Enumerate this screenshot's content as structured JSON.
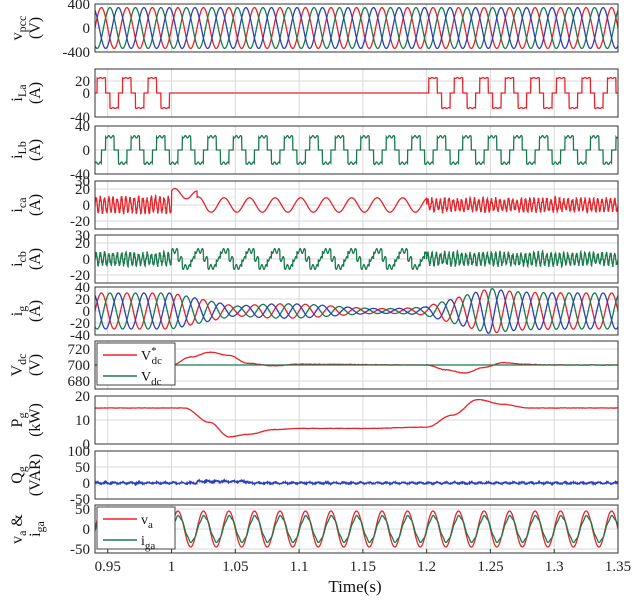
{
  "figure": {
    "xlabel": "Time(s)",
    "x_ticks": [
      "0.95",
      "1",
      "1.05",
      "1.1",
      "1.15",
      "1.2",
      "1.25",
      "1.3",
      "1.35"
    ]
  },
  "colors": {
    "red": "#e8232a",
    "green": "#1a7a4e",
    "blue": "#2b3fb8",
    "grid": "#d9d9d9"
  },
  "chart_data": [
    {
      "type": "line",
      "ylabel_main": "v",
      "ylabel_sub": "pcc",
      "ylabel_unit": "(V)",
      "ylim": [
        -400,
        400
      ],
      "yticks": [
        "400",
        "0",
        "-400"
      ],
      "description_free_values": {
        "amplitude": 340,
        "frequency_hz": 50
      },
      "series": [
        {
          "color": "red",
          "amplitude": 340,
          "phase_deg": 0
        },
        {
          "color": "green",
          "amplitude": 340,
          "phase_deg": -120
        },
        {
          "color": "blue",
          "amplitude": 340,
          "phase_deg": 120
        }
      ]
    },
    {
      "type": "line",
      "ylabel_main": "i",
      "ylabel_sub": "La",
      "ylabel_unit": "(A)",
      "ylim": [
        -40,
        40
      ],
      "yticks": [
        "20",
        "0",
        "-40"
      ],
      "series": [
        {
          "color": "red",
          "shape": "quasi-square",
          "amplitude": 25,
          "zero_interval": [
            1.0,
            1.2
          ]
        }
      ]
    },
    {
      "type": "line",
      "ylabel_main": "i",
      "ylabel_sub": "Lb",
      "ylabel_unit": "(A)",
      "ylim": [
        -40,
        40
      ],
      "yticks": [
        "40",
        "0",
        "-40"
      ],
      "series": [
        {
          "color": "green",
          "shape": "quasi-square",
          "amplitude": 22
        }
      ]
    },
    {
      "type": "line",
      "ylabel_main": "i",
      "ylabel_sub": "ca",
      "ylabel_unit": "(A)",
      "ylim": [
        -30,
        30
      ],
      "yticks": [
        "30",
        "20",
        "0",
        "-20"
      ],
      "series": [
        {
          "color": "red",
          "shape": "ripple-then-sine",
          "amplitude": 10
        }
      ]
    },
    {
      "type": "line",
      "ylabel_main": "i",
      "ylabel_sub": "cb",
      "ylabel_unit": "(A)",
      "ylim": [
        -30,
        30
      ],
      "yticks": [
        "30",
        "20",
        "0",
        "-20"
      ],
      "series": [
        {
          "color": "green",
          "shape": "ripple",
          "amplitude": 8
        }
      ]
    },
    {
      "type": "line",
      "ylabel_main": "i",
      "ylabel_sub": "g",
      "ylabel_unit": "(A)",
      "ylim": [
        -40,
        40
      ],
      "yticks": [
        "40",
        "20",
        "0",
        "-20",
        "-40"
      ],
      "series": [
        {
          "color": "red",
          "phase_deg": 0
        },
        {
          "color": "green",
          "phase_deg": -120
        },
        {
          "color": "blue",
          "phase_deg": 120
        }
      ],
      "amplitude_envelope": {
        "before_1": 30,
        "between": 8,
        "after_1_25": 30
      }
    },
    {
      "type": "line",
      "ylabel_main": "V",
      "ylabel_sub": "dc",
      "ylabel_unit": "(V)",
      "ylim": [
        670,
        730
      ],
      "yticks": [
        "720",
        "700",
        "680"
      ],
      "legend": {
        "position": "left",
        "entries": [
          {
            "label": "V",
            "sub": "dc",
            "sup": "*",
            "color": "red"
          },
          {
            "label": "V",
            "sub": "dc",
            "sup": "",
            "color": "green"
          }
        ]
      },
      "series": [
        {
          "name": "Vdc*",
          "color": "red",
          "points": [
            [
              0.94,
              700
            ],
            [
              1.0,
              700
            ],
            [
              1.015,
              710
            ],
            [
              1.03,
              716
            ],
            [
              1.045,
              712
            ],
            [
              1.06,
              702
            ],
            [
              1.08,
              699
            ],
            [
              1.1,
              701
            ],
            [
              1.2,
              700
            ],
            [
              1.215,
              694
            ],
            [
              1.23,
              690
            ],
            [
              1.245,
              697
            ],
            [
              1.26,
              703
            ],
            [
              1.275,
              701
            ],
            [
              1.3,
              700
            ],
            [
              1.35,
              700
            ]
          ]
        },
        {
          "name": "Vdc",
          "color": "green",
          "points": [
            [
              0.94,
              700
            ],
            [
              1.35,
              700
            ]
          ]
        }
      ]
    },
    {
      "type": "line",
      "ylabel_main": "P",
      "ylabel_sub": "g",
      "ylabel_unit": "(kW)",
      "ylim": [
        0,
        20
      ],
      "yticks": [
        "20",
        "10",
        "0"
      ],
      "series": [
        {
          "color": "red",
          "points": [
            [
              0.94,
              15
            ],
            [
              1.01,
              15
            ],
            [
              1.03,
              9
            ],
            [
              1.045,
              3
            ],
            [
              1.06,
              4
            ],
            [
              1.08,
              6
            ],
            [
              1.1,
              6.5
            ],
            [
              1.15,
              6.5
            ],
            [
              1.2,
              7
            ],
            [
              1.22,
              12
            ],
            [
              1.24,
              18.5
            ],
            [
              1.26,
              16.5
            ],
            [
              1.28,
              15
            ],
            [
              1.35,
              15
            ]
          ]
        }
      ]
    },
    {
      "type": "line",
      "ylabel_main": "Q",
      "ylabel_sub": "g",
      "ylabel_unit": "(VAR)",
      "ylim": [
        -50,
        100
      ],
      "yticks": [
        "100",
        "50",
        "0",
        "-50"
      ],
      "series": [
        {
          "color": "blue",
          "shape": "noise",
          "mean": 0
        }
      ]
    },
    {
      "type": "line",
      "ylabel_main": "v",
      "ylabel_sub": "a",
      "ylabel_mid": "&",
      "ylabel_main2": "i",
      "ylabel_sub2": "ga",
      "ylim": [
        -60,
        60
      ],
      "yticks": [
        "50",
        "0",
        "-50"
      ],
      "legend": {
        "position": "left",
        "entries": [
          {
            "label": "v",
            "sub": "a",
            "sup": "",
            "color": "red"
          },
          {
            "label": "i",
            "sub": "ga",
            "sup": "",
            "color": "green"
          }
        ]
      },
      "series": [
        {
          "name": "va",
          "color": "red",
          "amplitude": 45
        },
        {
          "name": "iga",
          "color": "green",
          "amplitude": 32
        }
      ]
    }
  ]
}
